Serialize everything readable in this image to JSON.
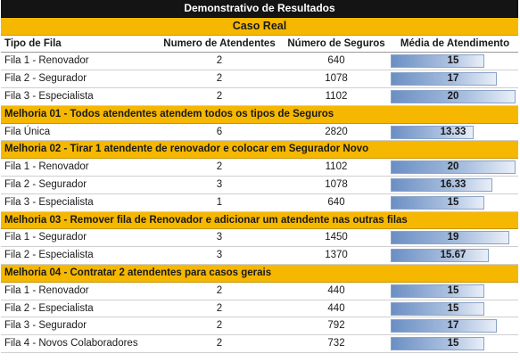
{
  "title": "Demonstrativo de Resultados",
  "case_label": "Caso Real",
  "headers": {
    "name": "Tipo de Fila",
    "attendants": "Numero de Atendentes",
    "insurances": "Número de Seguros",
    "average": "Média de Atendimento"
  },
  "scale_max": 20,
  "groups": [
    {
      "label": "",
      "rows": [
        {
          "name": "Fila 1 - Renovador",
          "attendants": "2",
          "insurances": "640",
          "average": 15,
          "average_label": "15"
        },
        {
          "name": "Fila 2 - Segurador",
          "attendants": "2",
          "insurances": "1078",
          "average": 17,
          "average_label": "17"
        },
        {
          "name": "Fila 3 - Especialista",
          "attendants": "2",
          "insurances": "1102",
          "average": 20,
          "average_label": "20"
        }
      ]
    },
    {
      "label": "Melhoria 01 - Todos atendentes atendem todos os tipos de Seguros",
      "rows": [
        {
          "name": "Fila Única",
          "attendants": "6",
          "insurances": "2820",
          "average": 13.33,
          "average_label": "13.33"
        }
      ]
    },
    {
      "label": "Melhoria 02 - Tirar 1 atendente de renovador e colocar em Segurador Novo",
      "rows": [
        {
          "name": "Fila 1 - Renovador",
          "attendants": "2",
          "insurances": "1102",
          "average": 20,
          "average_label": "20"
        },
        {
          "name": "Fila 2 - Segurador",
          "attendants": "3",
          "insurances": "1078",
          "average": 16.33,
          "average_label": "16.33"
        },
        {
          "name": "Fila 3 - Especialista",
          "attendants": "1",
          "insurances": "640",
          "average": 15,
          "average_label": "15"
        }
      ]
    },
    {
      "label": "Melhoria 03 - Remover fila de Renovador e adicionar um atendente nas outras filas",
      "rows": [
        {
          "name": "Fila 1 - Segurador",
          "attendants": "3",
          "insurances": "1450",
          "average": 19,
          "average_label": "19"
        },
        {
          "name": "Fila 2 - Especialista",
          "attendants": "3",
          "insurances": "1370",
          "average": 15.67,
          "average_label": "15.67"
        }
      ]
    },
    {
      "label": "Melhoria 04 - Contratar 2 atendentes para casos gerais",
      "rows": [
        {
          "name": "Fila 1 - Renovador",
          "attendants": "2",
          "insurances": "440",
          "average": 15,
          "average_label": "15"
        },
        {
          "name": "Fila 2 - Especialista",
          "attendants": "2",
          "insurances": "440",
          "average": 15,
          "average_label": "15"
        },
        {
          "name": "Fila 3 - Segurador",
          "attendants": "2",
          "insurances": "792",
          "average": 17,
          "average_label": "17"
        },
        {
          "name": "Fila 4 - Novos Colaboradores",
          "attendants": "2",
          "insurances": "732",
          "average": 15,
          "average_label": "15"
        }
      ]
    }
  ]
}
